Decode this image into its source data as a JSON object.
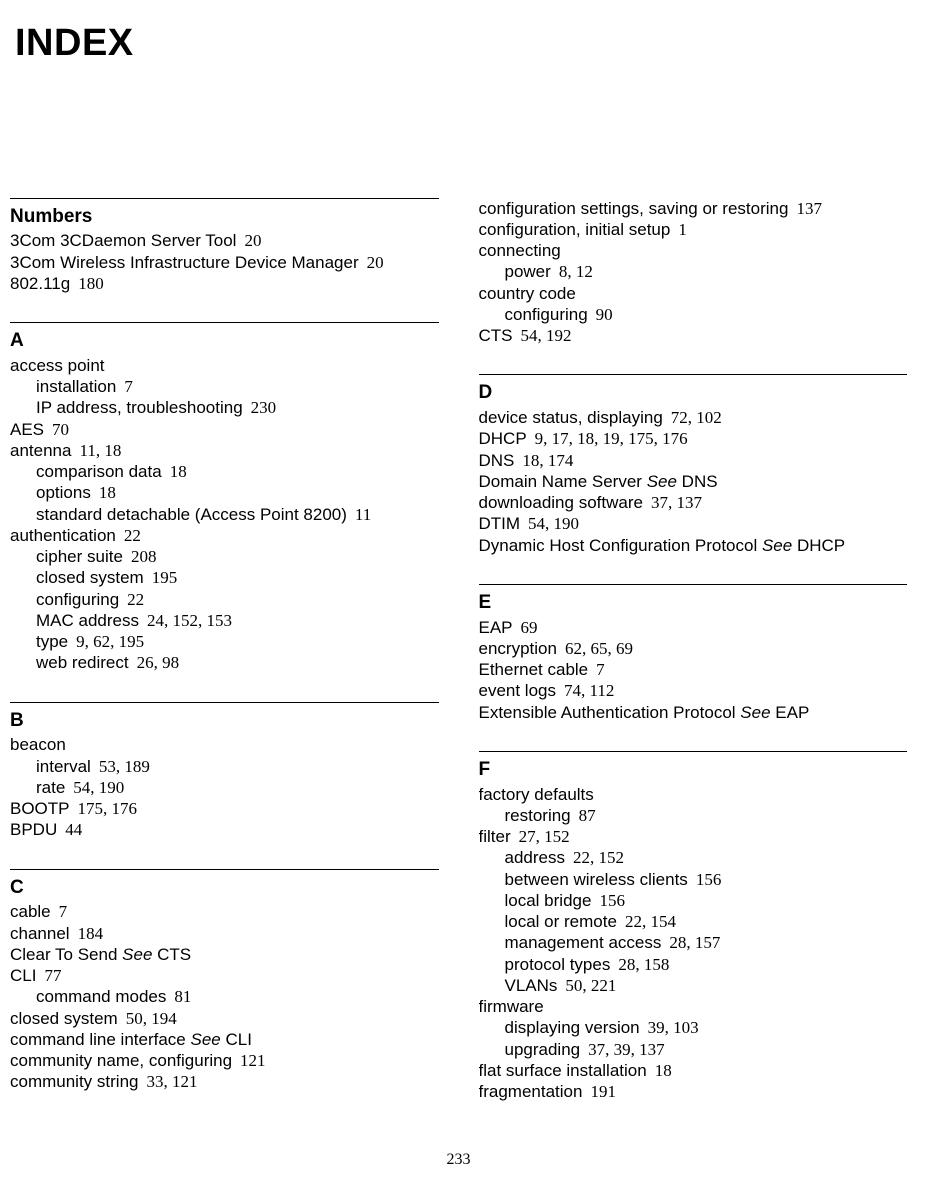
{
  "title": "INDEX",
  "pageNumber": "233",
  "leftColumn": [
    {
      "header": "Numbers",
      "entries": [
        {
          "level": 1,
          "text": "3Com 3CDaemon Server Tool",
          "pages": "20"
        },
        {
          "level": 1,
          "text": "3Com Wireless Infrastructure Device Manager",
          "pages": "20"
        },
        {
          "level": 1,
          "text": "802.11g",
          "pages": "180"
        }
      ]
    },
    {
      "header": "A",
      "entries": [
        {
          "level": 1,
          "text": "access point"
        },
        {
          "level": 2,
          "text": "installation",
          "pages": "7"
        },
        {
          "level": 2,
          "text": "IP address, troubleshooting",
          "pages": "230"
        },
        {
          "level": 1,
          "text": "AES",
          "pages": "70"
        },
        {
          "level": 1,
          "text": "antenna",
          "pages": "11, 18"
        },
        {
          "level": 2,
          "text": "comparison data",
          "pages": "18"
        },
        {
          "level": 2,
          "text": "options",
          "pages": "18"
        },
        {
          "level": 2,
          "text": "standard detachable (Access Point 8200)",
          "pages": "11"
        },
        {
          "level": 1,
          "text": "authentication",
          "pages": "22"
        },
        {
          "level": 2,
          "text": "cipher suite",
          "pages": "208"
        },
        {
          "level": 2,
          "text": "closed system",
          "pages": "195"
        },
        {
          "level": 2,
          "text": "configuring",
          "pages": "22"
        },
        {
          "level": 2,
          "text": "MAC address",
          "pages": "24, 152, 153"
        },
        {
          "level": 2,
          "text": "type",
          "pages": "9, 62, 195"
        },
        {
          "level": 2,
          "text": "web redirect",
          "pages": "26, 98"
        }
      ]
    },
    {
      "header": "B",
      "entries": [
        {
          "level": 1,
          "text": "beacon"
        },
        {
          "level": 2,
          "text": "interval",
          "pages": "53, 189"
        },
        {
          "level": 2,
          "text": "rate",
          "pages": "54, 190"
        },
        {
          "level": 1,
          "text": "BOOTP",
          "pages": "175, 176"
        },
        {
          "level": 1,
          "text": "BPDU",
          "pages": "44"
        }
      ]
    },
    {
      "header": "C",
      "entries": [
        {
          "level": 1,
          "text": "cable",
          "pages": "7"
        },
        {
          "level": 1,
          "text": "channel",
          "pages": "184"
        },
        {
          "level": 1,
          "text": "Clear To Send",
          "see": "See",
          "seeTarget": "CTS"
        },
        {
          "level": 1,
          "text": "CLI",
          "pages": "77"
        },
        {
          "level": 2,
          "text": "command modes",
          "pages": "81"
        },
        {
          "level": 1,
          "text": "closed system",
          "pages": "50, 194"
        },
        {
          "level": 1,
          "text": "command line interface",
          "see": "See",
          "seeTarget": "CLI"
        },
        {
          "level": 1,
          "text": "community name, configuring",
          "pages": "121"
        },
        {
          "level": 1,
          "text": "community string",
          "pages": "33, 121"
        }
      ]
    }
  ],
  "rightColumn": [
    {
      "entries": [
        {
          "level": 1,
          "text": "configuration settings, saving or restoring",
          "pages": "137"
        },
        {
          "level": 1,
          "text": "configuration, initial setup",
          "pages": "1"
        },
        {
          "level": 1,
          "text": "connecting"
        },
        {
          "level": 2,
          "text": "power",
          "pages": "8, 12"
        },
        {
          "level": 1,
          "text": "country code"
        },
        {
          "level": 2,
          "text": "configuring",
          "pages": "90"
        },
        {
          "level": 1,
          "text": "CTS",
          "pages": "54, 192"
        }
      ]
    },
    {
      "header": "D",
      "entries": [
        {
          "level": 1,
          "text": "device status, displaying",
          "pages": "72, 102"
        },
        {
          "level": 1,
          "text": "DHCP",
          "pages": "9, 17, 18, 19, 175, 176"
        },
        {
          "level": 1,
          "text": "DNS",
          "pages": "18, 174"
        },
        {
          "level": 1,
          "text": "Domain Name Server",
          "see": "See",
          "seeTarget": "DNS"
        },
        {
          "level": 1,
          "text": "downloading software",
          "pages": "37, 137"
        },
        {
          "level": 1,
          "text": "DTIM",
          "pages": "54, 190"
        },
        {
          "level": 1,
          "text": "Dynamic Host Configuration Protocol",
          "see": "See",
          "seeTarget": "DHCP"
        }
      ]
    },
    {
      "header": "E",
      "entries": [
        {
          "level": 1,
          "text": "EAP",
          "pages": "69"
        },
        {
          "level": 1,
          "text": "encryption",
          "pages": "62, 65, 69"
        },
        {
          "level": 1,
          "text": "Ethernet cable",
          "pages": "7"
        },
        {
          "level": 1,
          "text": "event logs",
          "pages": "74, 112"
        },
        {
          "level": 1,
          "text": "Extensible Authentication Protocol",
          "see": "See",
          "seeTarget": "EAP"
        }
      ]
    },
    {
      "header": "F",
      "entries": [
        {
          "level": 1,
          "text": "factory defaults"
        },
        {
          "level": 2,
          "text": "restoring",
          "pages": "87"
        },
        {
          "level": 1,
          "text": "filter",
          "pages": "27, 152"
        },
        {
          "level": 2,
          "text": "address",
          "pages": "22, 152"
        },
        {
          "level": 2,
          "text": "between wireless clients",
          "pages": "156"
        },
        {
          "level": 2,
          "text": "local bridge",
          "pages": "156"
        },
        {
          "level": 2,
          "text": "local or remote",
          "pages": "22, 154"
        },
        {
          "level": 2,
          "text": "management access",
          "pages": "28, 157"
        },
        {
          "level": 2,
          "text": "protocol types",
          "pages": "28, 158"
        },
        {
          "level": 2,
          "text": "VLANs",
          "pages": "50, 221"
        },
        {
          "level": 1,
          "text": "firmware"
        },
        {
          "level": 2,
          "text": "displaying version",
          "pages": "39, 103"
        },
        {
          "level": 2,
          "text": "upgrading",
          "pages": "37, 39, 137"
        },
        {
          "level": 1,
          "text": "flat surface installation",
          "pages": "18"
        },
        {
          "level": 1,
          "text": "fragmentation",
          "pages": "191"
        }
      ]
    }
  ]
}
